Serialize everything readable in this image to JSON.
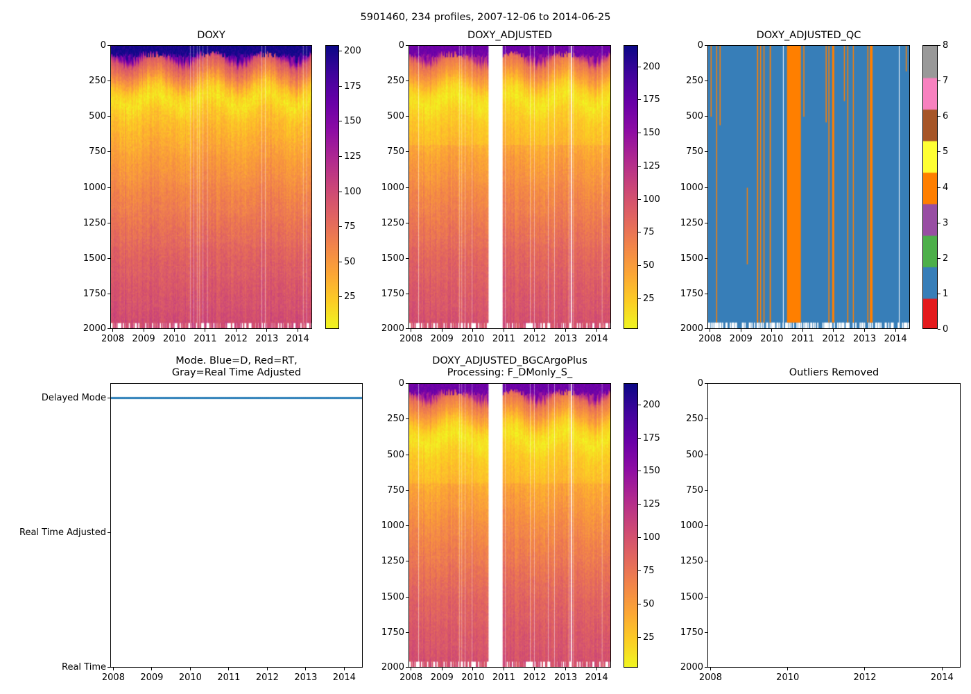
{
  "figure": {
    "title": "5901460, 234 profiles, 2007-12-06 to 2014-06-25"
  },
  "chart_data": [
    {
      "id": "doxy",
      "type": "heatmap",
      "title": "DOXY",
      "n_profiles": 234,
      "x_range_years": [
        2007.93,
        2014.48
      ],
      "xticks": [
        2008,
        2009,
        2010,
        2011,
        2012,
        2013,
        2014
      ],
      "ylim": [
        2000,
        0
      ],
      "yticks": [
        0,
        250,
        500,
        750,
        1000,
        1250,
        1500,
        1750,
        2000
      ],
      "colormap": "plasma_r",
      "clim": [
        2,
        204
      ],
      "cbar_ticks": [
        25,
        50,
        75,
        100,
        125,
        150,
        175,
        200
      ],
      "mean_profile": {
        "depth": [
          0,
          40,
          100,
          200,
          300,
          380,
          500,
          750,
          1000,
          1500,
          2000
        ],
        "value": [
          200,
          195,
          95,
          62,
          25,
          12,
          28,
          45,
          60,
          85,
          100
        ]
      },
      "missing_profile_years": [
        2010.5,
        2010.59,
        2010.7,
        2010.81,
        2010.92,
        2011.04,
        2012.82,
        2012.93,
        2014.17,
        2014.28
      ]
    },
    {
      "id": "doxy_adjusted",
      "type": "heatmap",
      "title": "DOXY_ADJUSTED",
      "n_profiles": 234,
      "x_range_years": [
        2007.93,
        2014.48
      ],
      "xticks": [
        2008,
        2009,
        2010,
        2011,
        2012,
        2013,
        2014
      ],
      "ylim": [
        2000,
        0
      ],
      "yticks": [
        0,
        250,
        500,
        750,
        1000,
        1250,
        1500,
        1750,
        2000
      ],
      "colormap": "plasma_r",
      "clim": [
        2,
        216
      ],
      "cbar_ticks": [
        25,
        50,
        75,
        100,
        125,
        150,
        175,
        200
      ],
      "missing_range_years": [
        2010.48,
        2010.95
      ],
      "missing_profile_years": [
        2008.2,
        2009.53,
        2009.62,
        2009.73,
        2009.94,
        2011.02,
        2011.83,
        2011.97,
        2012.44,
        2012.62,
        2013.09,
        2013.16,
        2013.2,
        2013.25,
        2014.17
      ]
    },
    {
      "id": "doxy_adjusted_qc",
      "type": "heatmap",
      "title": "DOXY_ADJUSTED_QC",
      "x_range_years": [
        2007.93,
        2014.48
      ],
      "xticks": [
        2008,
        2009,
        2010,
        2011,
        2012,
        2013,
        2014
      ],
      "ylim": [
        2000,
        0
      ],
      "yticks": [
        0,
        250,
        500,
        750,
        1000,
        1250,
        1500,
        1750,
        2000
      ],
      "clim": [
        0,
        8
      ],
      "cbar_ticks": [
        0,
        1,
        2,
        3,
        4,
        5,
        6,
        7,
        8
      ],
      "flag_colors": [
        "#e41a1c",
        "#377eb8",
        "#4daf4a",
        "#984ea3",
        "#ff7f00",
        "#ffff33",
        "#a65628",
        "#f781bf",
        "#999999"
      ],
      "default_flag": 1,
      "flag4_segments": [
        {
          "years": [
            2008.01,
            2008.04
          ],
          "depth": [
            0,
            500
          ]
        },
        {
          "years": [
            2008.19,
            2008.22
          ],
          "depth": [
            0,
            2000
          ]
        },
        {
          "years": [
            2008.3,
            2008.33
          ],
          "depth": [
            0,
            560
          ]
        },
        {
          "years": [
            2009.18,
            2009.21
          ],
          "depth": [
            1000,
            1540
          ]
        },
        {
          "years": [
            2009.51,
            2009.55
          ],
          "depth": [
            0,
            2000
          ]
        },
        {
          "years": [
            2009.61,
            2009.64
          ],
          "depth": [
            0,
            2000
          ]
        },
        {
          "years": [
            2009.72,
            2009.75
          ],
          "depth": [
            0,
            2000
          ]
        },
        {
          "years": [
            2009.92,
            2009.96
          ],
          "depth": [
            0,
            2000
          ]
        },
        {
          "years": [
            2010.48,
            2010.93
          ],
          "depth": [
            0,
            2000
          ]
        },
        {
          "years": [
            2011.01,
            2011.04
          ],
          "depth": [
            0,
            500
          ]
        },
        {
          "years": [
            2011.73,
            2011.76
          ],
          "depth": [
            0,
            540
          ]
        },
        {
          "years": [
            2011.82,
            2011.85
          ],
          "depth": [
            0,
            2000
          ]
        },
        {
          "years": [
            2011.94,
            2012.01
          ],
          "depth": [
            0,
            2000
          ]
        },
        {
          "years": [
            2012.32,
            2012.35
          ],
          "depth": [
            0,
            390
          ]
        },
        {
          "years": [
            2012.43,
            2012.46
          ],
          "depth": [
            0,
            2000
          ]
        },
        {
          "years": [
            2012.61,
            2012.64
          ],
          "depth": [
            0,
            2000
          ]
        },
        {
          "years": [
            2013.08,
            2013.11
          ],
          "depth": [
            0,
            2000
          ]
        },
        {
          "years": [
            2013.16,
            2013.25
          ],
          "depth": [
            0,
            2000
          ]
        },
        {
          "years": [
            2014.32,
            2014.35
          ],
          "depth": [
            0,
            180
          ]
        }
      ]
    },
    {
      "id": "mode",
      "type": "scatter",
      "title": "Mode. Blue=D, Red=RT,\nGray=Real Time Adjusted",
      "x_range_years": [
        2007.93,
        2014.49
      ],
      "xticks": [
        2008,
        2009,
        2010,
        2011,
        2012,
        2013,
        2014
      ],
      "ytick_labels": [
        "Real Time",
        "Real Time Adjusted",
        "Delayed Mode"
      ],
      "series": [
        {
          "name": "Delayed Mode",
          "color": "#1f77b4",
          "level": 2,
          "n_points": 234
        }
      ]
    },
    {
      "id": "doxy_adjusted_bgcargoplus",
      "type": "heatmap",
      "title": "DOXY_ADJUSTED_BGCArgoPlus\nProcessing: F_DMonly_S_",
      "n_profiles": 234,
      "x_range_years": [
        2007.93,
        2014.48
      ],
      "xticks": [
        2008,
        2009,
        2010,
        2011,
        2012,
        2013,
        2014
      ],
      "ylim": [
        2000,
        0
      ],
      "yticks": [
        0,
        250,
        500,
        750,
        1000,
        1250,
        1500,
        1750,
        2000
      ],
      "colormap": "plasma_r",
      "clim": [
        2,
        216
      ],
      "cbar_ticks": [
        25,
        50,
        75,
        100,
        125,
        150,
        175,
        200
      ],
      "missing_range_years": [
        2010.48,
        2010.95
      ],
      "missing_profile_years": [
        2008.2,
        2009.53,
        2009.62,
        2009.73,
        2009.94,
        2011.02,
        2011.83,
        2011.97,
        2012.44,
        2012.62,
        2013.09,
        2013.16,
        2013.2,
        2013.25,
        2014.17
      ]
    },
    {
      "id": "outliers_removed",
      "type": "scatter",
      "title": "Outliers Removed",
      "x_range_years": [
        2007.93,
        2014.49
      ],
      "xticks": [
        2008,
        2010,
        2012,
        2014
      ],
      "ylim": [
        2000,
        0
      ],
      "yticks": [
        0,
        250,
        500,
        750,
        1000,
        1250,
        1500,
        1750,
        2000
      ],
      "series": []
    }
  ]
}
